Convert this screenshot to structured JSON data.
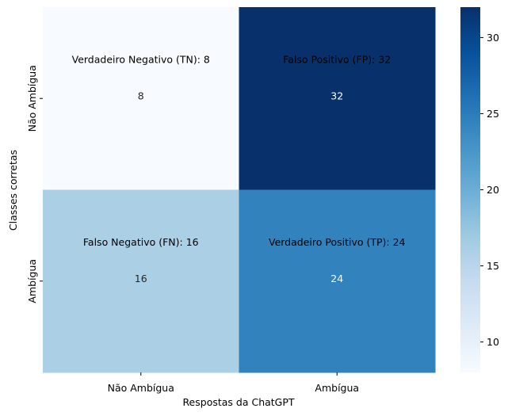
{
  "chart_data": {
    "type": "heatmap",
    "title": "",
    "xlabel": "Respostas da ChatGPT",
    "ylabel": "Classes corretas",
    "x_categories": [
      "Não Ambígua",
      "Ambígua"
    ],
    "y_categories": [
      "Não Ambígua",
      "Ambígua"
    ],
    "values": [
      [
        8,
        32
      ],
      [
        16,
        24
      ]
    ],
    "value_labels": [
      [
        "8",
        "32"
      ],
      [
        "16",
        "24"
      ]
    ],
    "annotations": [
      [
        "Verdadeiro Negativo (TN): 8",
        "Falso Positivo (FP): 32"
      ],
      [
        "Falso Negativo (FN): 16",
        "Verdadeiro Positivo (TP): 24"
      ]
    ],
    "colormap": "Blues",
    "colorbar_range": [
      8,
      32
    ],
    "colorbar_ticks": [
      10,
      15,
      20,
      25,
      30
    ],
    "colors": {
      "8": "#f7fbff",
      "16": "#abd0e6",
      "24": "#3282be",
      "32": "#08306b"
    }
  }
}
